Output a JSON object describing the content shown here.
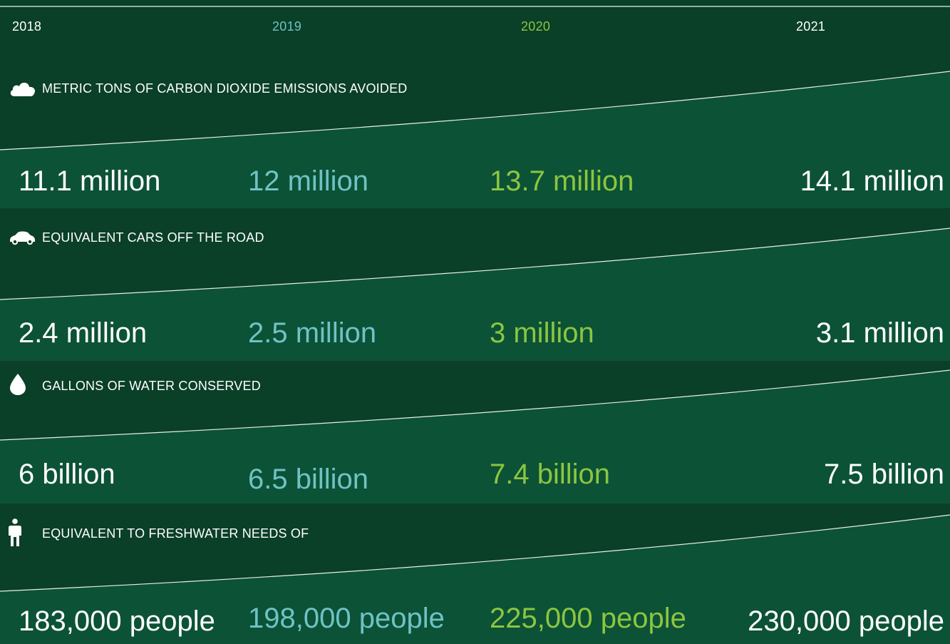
{
  "chart_data": {
    "type": "table",
    "years": [
      "2018",
      "2019",
      "2020",
      "2021"
    ],
    "year_colors": [
      "#ffffff",
      "#6fc3c4",
      "#8cc63f",
      "#ffffff"
    ],
    "rows": [
      {
        "label": "METRIC TONS OF CARBON DIOXIDE EMISSIONS AVOIDED",
        "icon": "cloud-icon",
        "values": [
          "11.1 million",
          "12 million",
          "13.7 million",
          "14.1 million"
        ]
      },
      {
        "label": "EQUIVALENT CARS OFF THE ROAD",
        "icon": "car-icon",
        "values": [
          "2.4 million",
          "2.5 million",
          "3 million",
          "3.1 million"
        ]
      },
      {
        "label": "GALLONS OF WATER CONSERVED",
        "icon": "water-drop-icon",
        "values": [
          "6 billion",
          "6.5 billion",
          "7.4 billion",
          "7.5 billion"
        ]
      },
      {
        "label": "EQUIVALENT TO FRESHWATER NEEDS OF",
        "icon": "person-icon",
        "values": [
          "183,000 people",
          "198,000 people",
          "225,000 people",
          "230,000 people"
        ]
      }
    ]
  },
  "colors": {
    "band_light": "#0c5237",
    "band_dark": "#0a3f28",
    "line": "#e9efe8"
  }
}
